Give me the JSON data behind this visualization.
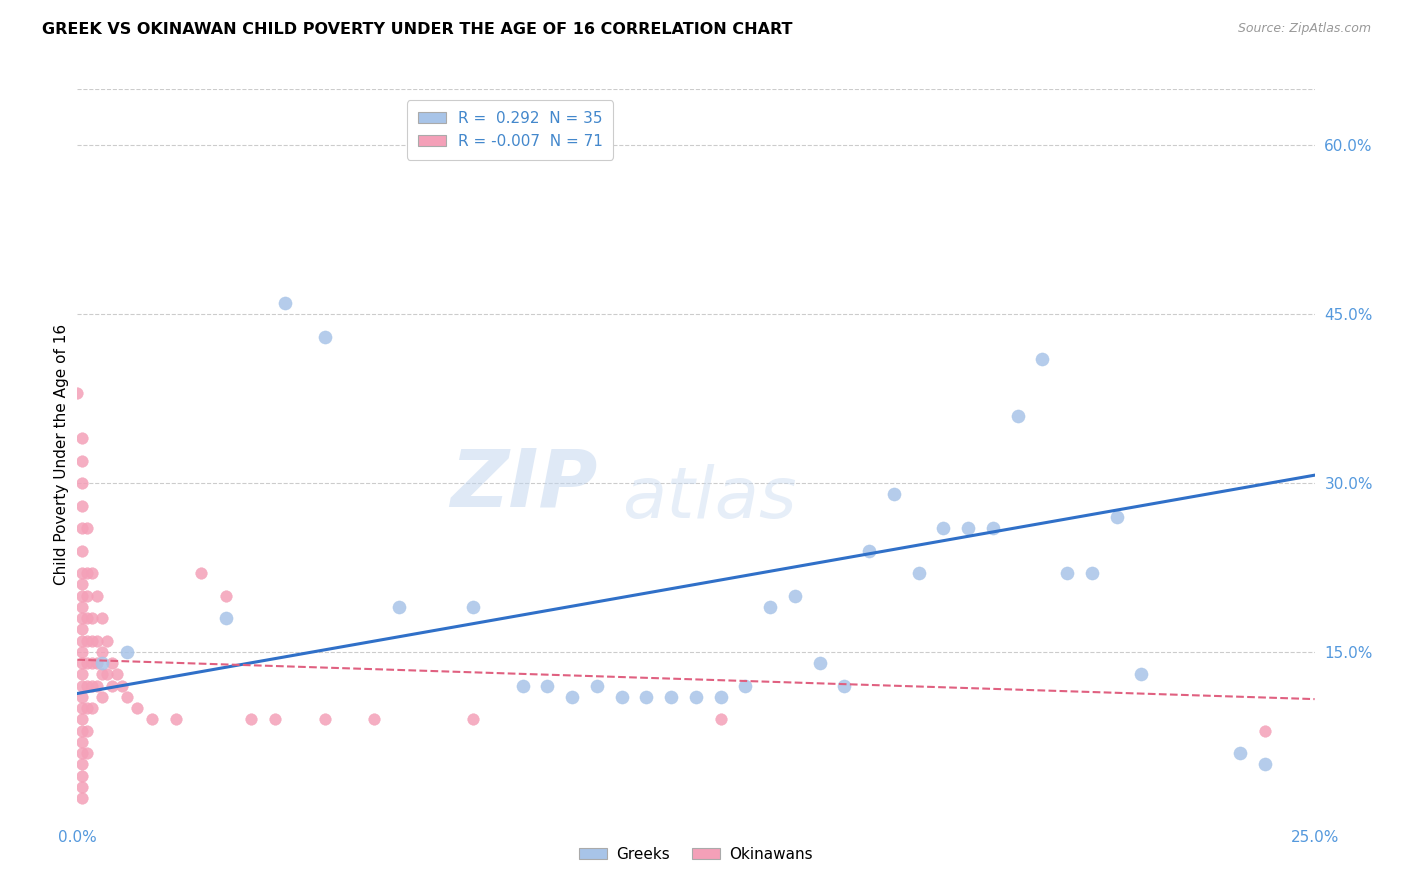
{
  "title": "GREEK VS OKINAWAN CHILD POVERTY UNDER THE AGE OF 16 CORRELATION CHART",
  "source": "Source: ZipAtlas.com",
  "ylabel": "Child Poverty Under the Age of 16",
  "yticks": [
    "60.0%",
    "45.0%",
    "30.0%",
    "15.0%"
  ],
  "ytick_vals": [
    0.6,
    0.45,
    0.3,
    0.15
  ],
  "xlim": [
    0.0,
    0.25
  ],
  "ylim": [
    0.0,
    0.65
  ],
  "legend_label1": "R =  0.292  N = 35",
  "legend_label2": "R = -0.007  N = 71",
  "legend_name1": "Greeks",
  "legend_name2": "Okinawans",
  "greek_color": "#a8c4e8",
  "okinawan_color": "#f4a0b8",
  "trendline_greek_color": "#3070c8",
  "trendline_okinawan_color": "#e06080",
  "watermark": "ZIPatlas",
  "greek_points": [
    [
      0.005,
      0.14
    ],
    [
      0.01,
      0.15
    ],
    [
      0.03,
      0.18
    ],
    [
      0.042,
      0.46
    ],
    [
      0.05,
      0.43
    ],
    [
      0.065,
      0.19
    ],
    [
      0.08,
      0.19
    ],
    [
      0.09,
      0.12
    ],
    [
      0.095,
      0.12
    ],
    [
      0.1,
      0.11
    ],
    [
      0.105,
      0.12
    ],
    [
      0.11,
      0.11
    ],
    [
      0.115,
      0.11
    ],
    [
      0.12,
      0.11
    ],
    [
      0.125,
      0.11
    ],
    [
      0.13,
      0.11
    ],
    [
      0.135,
      0.12
    ],
    [
      0.14,
      0.19
    ],
    [
      0.145,
      0.2
    ],
    [
      0.15,
      0.14
    ],
    [
      0.155,
      0.12
    ],
    [
      0.16,
      0.24
    ],
    [
      0.165,
      0.29
    ],
    [
      0.17,
      0.22
    ],
    [
      0.175,
      0.26
    ],
    [
      0.18,
      0.26
    ],
    [
      0.185,
      0.26
    ],
    [
      0.19,
      0.36
    ],
    [
      0.195,
      0.41
    ],
    [
      0.2,
      0.22
    ],
    [
      0.205,
      0.22
    ],
    [
      0.21,
      0.27
    ],
    [
      0.215,
      0.13
    ],
    [
      0.235,
      0.06
    ],
    [
      0.24,
      0.05
    ]
  ],
  "okinawan_points": [
    [
      0.0,
      0.38
    ],
    [
      0.001,
      0.34
    ],
    [
      0.001,
      0.32
    ],
    [
      0.001,
      0.3
    ],
    [
      0.001,
      0.28
    ],
    [
      0.001,
      0.26
    ],
    [
      0.001,
      0.24
    ],
    [
      0.001,
      0.22
    ],
    [
      0.001,
      0.21
    ],
    [
      0.001,
      0.2
    ],
    [
      0.001,
      0.19
    ],
    [
      0.001,
      0.18
    ],
    [
      0.001,
      0.17
    ],
    [
      0.001,
      0.16
    ],
    [
      0.001,
      0.15
    ],
    [
      0.001,
      0.14
    ],
    [
      0.001,
      0.13
    ],
    [
      0.001,
      0.12
    ],
    [
      0.001,
      0.11
    ],
    [
      0.001,
      0.1
    ],
    [
      0.001,
      0.09
    ],
    [
      0.001,
      0.08
    ],
    [
      0.001,
      0.07
    ],
    [
      0.001,
      0.06
    ],
    [
      0.001,
      0.05
    ],
    [
      0.001,
      0.04
    ],
    [
      0.001,
      0.03
    ],
    [
      0.001,
      0.02
    ],
    [
      0.002,
      0.26
    ],
    [
      0.002,
      0.22
    ],
    [
      0.002,
      0.2
    ],
    [
      0.002,
      0.18
    ],
    [
      0.002,
      0.16
    ],
    [
      0.002,
      0.14
    ],
    [
      0.002,
      0.12
    ],
    [
      0.002,
      0.1
    ],
    [
      0.002,
      0.08
    ],
    [
      0.002,
      0.06
    ],
    [
      0.003,
      0.22
    ],
    [
      0.003,
      0.18
    ],
    [
      0.003,
      0.16
    ],
    [
      0.003,
      0.14
    ],
    [
      0.003,
      0.12
    ],
    [
      0.003,
      0.1
    ],
    [
      0.004,
      0.2
    ],
    [
      0.004,
      0.16
    ],
    [
      0.004,
      0.14
    ],
    [
      0.004,
      0.12
    ],
    [
      0.005,
      0.18
    ],
    [
      0.005,
      0.15
    ],
    [
      0.005,
      0.13
    ],
    [
      0.005,
      0.11
    ],
    [
      0.006,
      0.16
    ],
    [
      0.006,
      0.13
    ],
    [
      0.007,
      0.14
    ],
    [
      0.007,
      0.12
    ],
    [
      0.008,
      0.13
    ],
    [
      0.009,
      0.12
    ],
    [
      0.01,
      0.11
    ],
    [
      0.012,
      0.1
    ],
    [
      0.015,
      0.09
    ],
    [
      0.02,
      0.09
    ],
    [
      0.025,
      0.22
    ],
    [
      0.03,
      0.2
    ],
    [
      0.035,
      0.09
    ],
    [
      0.04,
      0.09
    ],
    [
      0.05,
      0.09
    ],
    [
      0.06,
      0.09
    ],
    [
      0.08,
      0.09
    ],
    [
      0.13,
      0.09
    ],
    [
      0.24,
      0.08
    ]
  ],
  "trendline_greek": [
    [
      0.0,
      0.113
    ],
    [
      0.25,
      0.307
    ]
  ],
  "trendline_okinawan": [
    [
      0.0,
      0.143
    ],
    [
      0.25,
      0.108
    ]
  ]
}
